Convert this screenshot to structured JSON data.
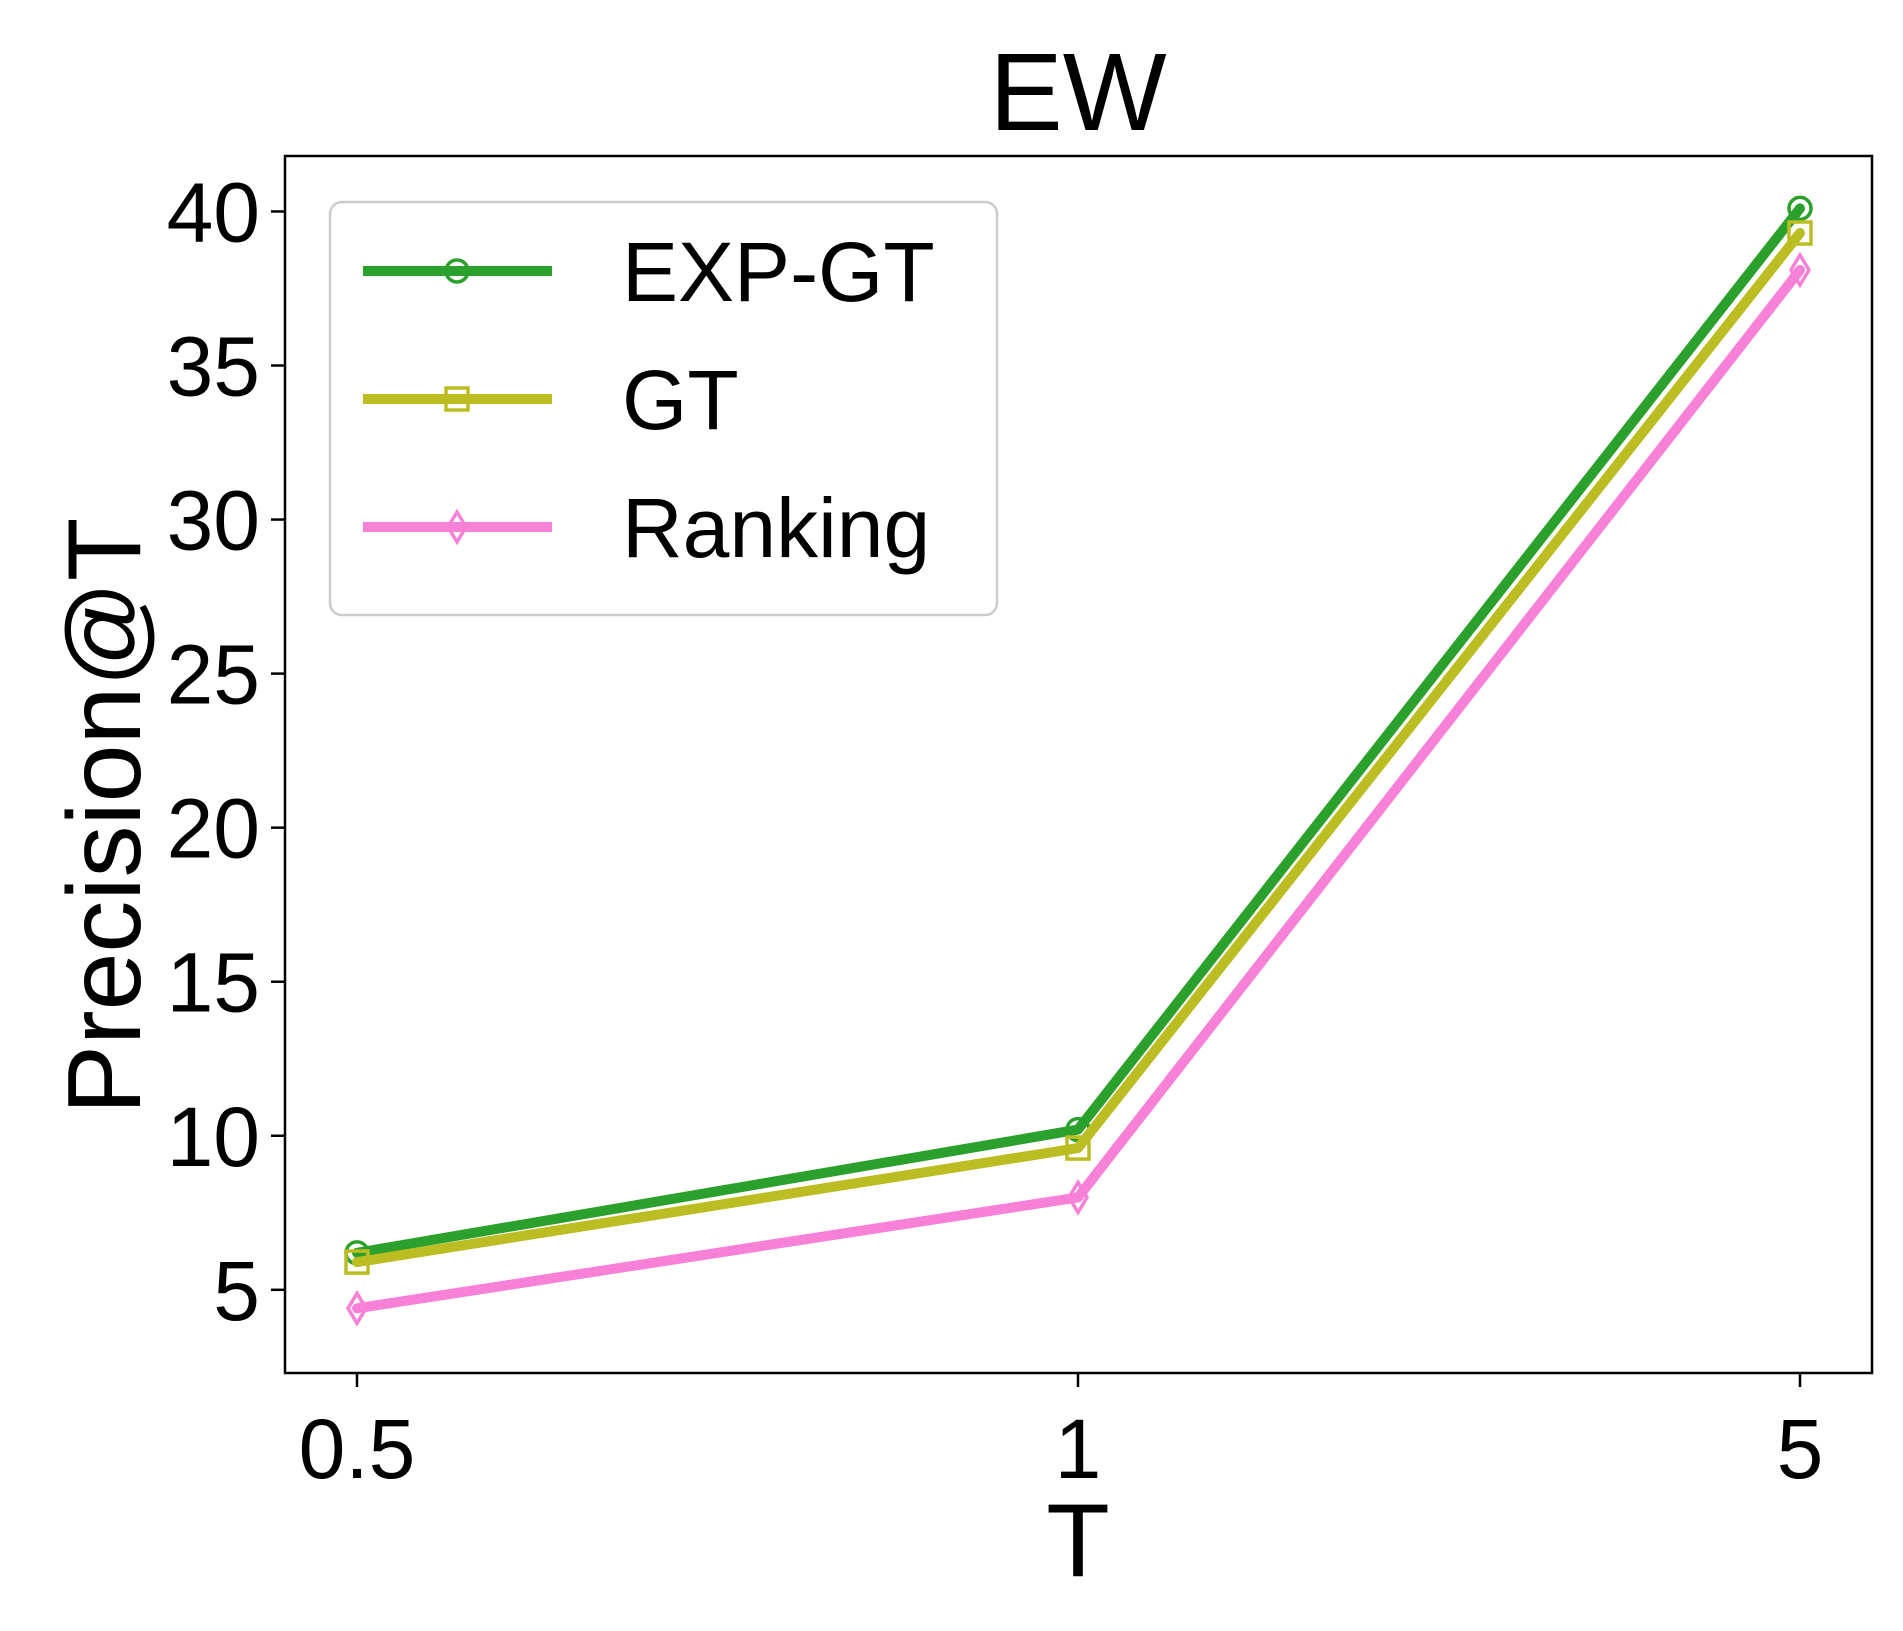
{
  "chart_data": {
    "type": "line",
    "title": "EW",
    "xlabel": "T",
    "ylabel": "Precision@T",
    "categories": [
      "0.5",
      "1",
      "5"
    ],
    "ylim": [
      2.3,
      41.8
    ],
    "yticks": [
      5,
      10,
      15,
      20,
      25,
      30,
      35,
      40
    ],
    "grid": false,
    "legend_position": "top-left",
    "series": [
      {
        "name": "EXP-GT",
        "color": "#2ca02c",
        "marker": "circle",
        "values": [
          6.2,
          10.2,
          40.1
        ]
      },
      {
        "name": "GT",
        "color": "#bcbd22",
        "marker": "square",
        "values": [
          5.9,
          9.6,
          39.3
        ]
      },
      {
        "name": "Ranking",
        "color": "#f781d6",
        "marker": "diamond",
        "values": [
          4.4,
          8.0,
          38.1
        ]
      }
    ]
  }
}
